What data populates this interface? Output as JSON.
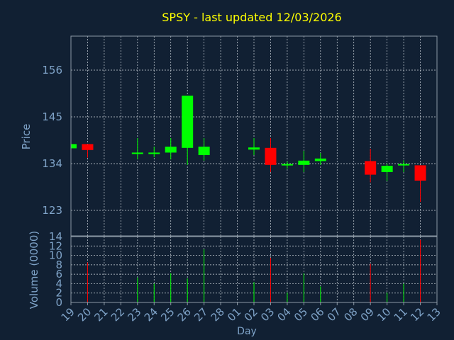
{
  "colors": {
    "background": "#112033",
    "title": "#ffff00",
    "axis_text": "#7fa3c8",
    "frame": "#8c99a6",
    "grid": "#cfd6dd",
    "up": "#00ff00",
    "down": "#ff0000"
  },
  "chart_data": [
    {
      "type": "candlestick",
      "title": "SPSY - last updated 12/03/2026",
      "ylabel": "Price",
      "ylim": [
        117,
        164
      ],
      "yticks": [
        123,
        134,
        145,
        156
      ],
      "grid": true,
      "categories": [
        "19",
        "20",
        "21",
        "22",
        "23",
        "24",
        "25",
        "26",
        "27",
        "28",
        "01",
        "02",
        "03",
        "04",
        "05",
        "06",
        "07",
        "08",
        "09",
        "10",
        "11",
        "12",
        "13"
      ],
      "candles": [
        {
          "x": "19",
          "open": 137.6,
          "high": 138.6,
          "low": 137.4,
          "close": 138.6
        },
        {
          "x": "20",
          "open": 138.6,
          "high": 138.6,
          "low": 135.4,
          "close": 137.2
        },
        {
          "x": "23",
          "open": 136.5,
          "high": 140.0,
          "low": 135.0,
          "close": 136.6
        },
        {
          "x": "24",
          "open": 136.4,
          "high": 138.0,
          "low": 135.5,
          "close": 136.6
        },
        {
          "x": "25",
          "open": 136.6,
          "high": 140.0,
          "low": 135.0,
          "close": 138.0
        },
        {
          "x": "26",
          "open": 137.7,
          "high": 150.0,
          "low": 133.7,
          "close": 150.0
        },
        {
          "x": "27",
          "open": 136.0,
          "high": 140.0,
          "low": 134.7,
          "close": 138.0
        },
        {
          "x": "02",
          "open": 137.3,
          "high": 140.0,
          "low": 136.0,
          "close": 137.8
        },
        {
          "x": "03",
          "open": 137.7,
          "high": 140.0,
          "low": 132.0,
          "close": 133.7
        },
        {
          "x": "04",
          "open": 133.6,
          "high": 134.5,
          "low": 132.8,
          "close": 133.9
        },
        {
          "x": "05",
          "open": 133.7,
          "high": 137.0,
          "low": 132.0,
          "close": 134.7
        },
        {
          "x": "06",
          "open": 134.6,
          "high": 136.5,
          "low": 133.7,
          "close": 135.2
        },
        {
          "x": "09",
          "open": 134.6,
          "high": 137.5,
          "low": 129.6,
          "close": 131.4
        },
        {
          "x": "10",
          "open": 132.0,
          "high": 134.0,
          "low": 129.9,
          "close": 133.5
        },
        {
          "x": "11",
          "open": 133.6,
          "high": 134.8,
          "low": 132.0,
          "close": 133.9
        },
        {
          "x": "12",
          "open": 133.6,
          "high": 133.6,
          "low": 125.0,
          "close": 130.0
        }
      ]
    },
    {
      "type": "bar",
      "ylabel": "Volume (0000)",
      "xlabel": "Day",
      "ylim": [
        0,
        14
      ],
      "yticks": [
        0,
        2,
        4,
        6,
        8,
        10,
        12,
        14
      ],
      "grid": true,
      "categories": [
        "19",
        "20",
        "21",
        "22",
        "23",
        "24",
        "25",
        "26",
        "27",
        "28",
        "01",
        "02",
        "03",
        "04",
        "05",
        "06",
        "07",
        "08",
        "09",
        "10",
        "11",
        "12",
        "13"
      ],
      "values": [
        {
          "x": "20",
          "volume": 8.5,
          "color": "down"
        },
        {
          "x": "23",
          "volume": 5.3,
          "color": "up"
        },
        {
          "x": "24",
          "volume": 4.0,
          "color": "up"
        },
        {
          "x": "25",
          "volume": 6.2,
          "color": "up"
        },
        {
          "x": "26",
          "volume": 5.1,
          "color": "up"
        },
        {
          "x": "27",
          "volume": 11.3,
          "color": "up"
        },
        {
          "x": "02",
          "volume": 4.3,
          "color": "up"
        },
        {
          "x": "03",
          "volume": 9.5,
          "color": "down"
        },
        {
          "x": "04",
          "volume": 2.1,
          "color": "up"
        },
        {
          "x": "05",
          "volume": 6.2,
          "color": "up"
        },
        {
          "x": "06",
          "volume": 3.4,
          "color": "up"
        },
        {
          "x": "09",
          "volume": 8.2,
          "color": "down"
        },
        {
          "x": "10",
          "volume": 2.1,
          "color": "up"
        },
        {
          "x": "11",
          "volume": 4.0,
          "color": "up"
        },
        {
          "x": "12",
          "volume": 13.3,
          "color": "down"
        }
      ]
    }
  ]
}
